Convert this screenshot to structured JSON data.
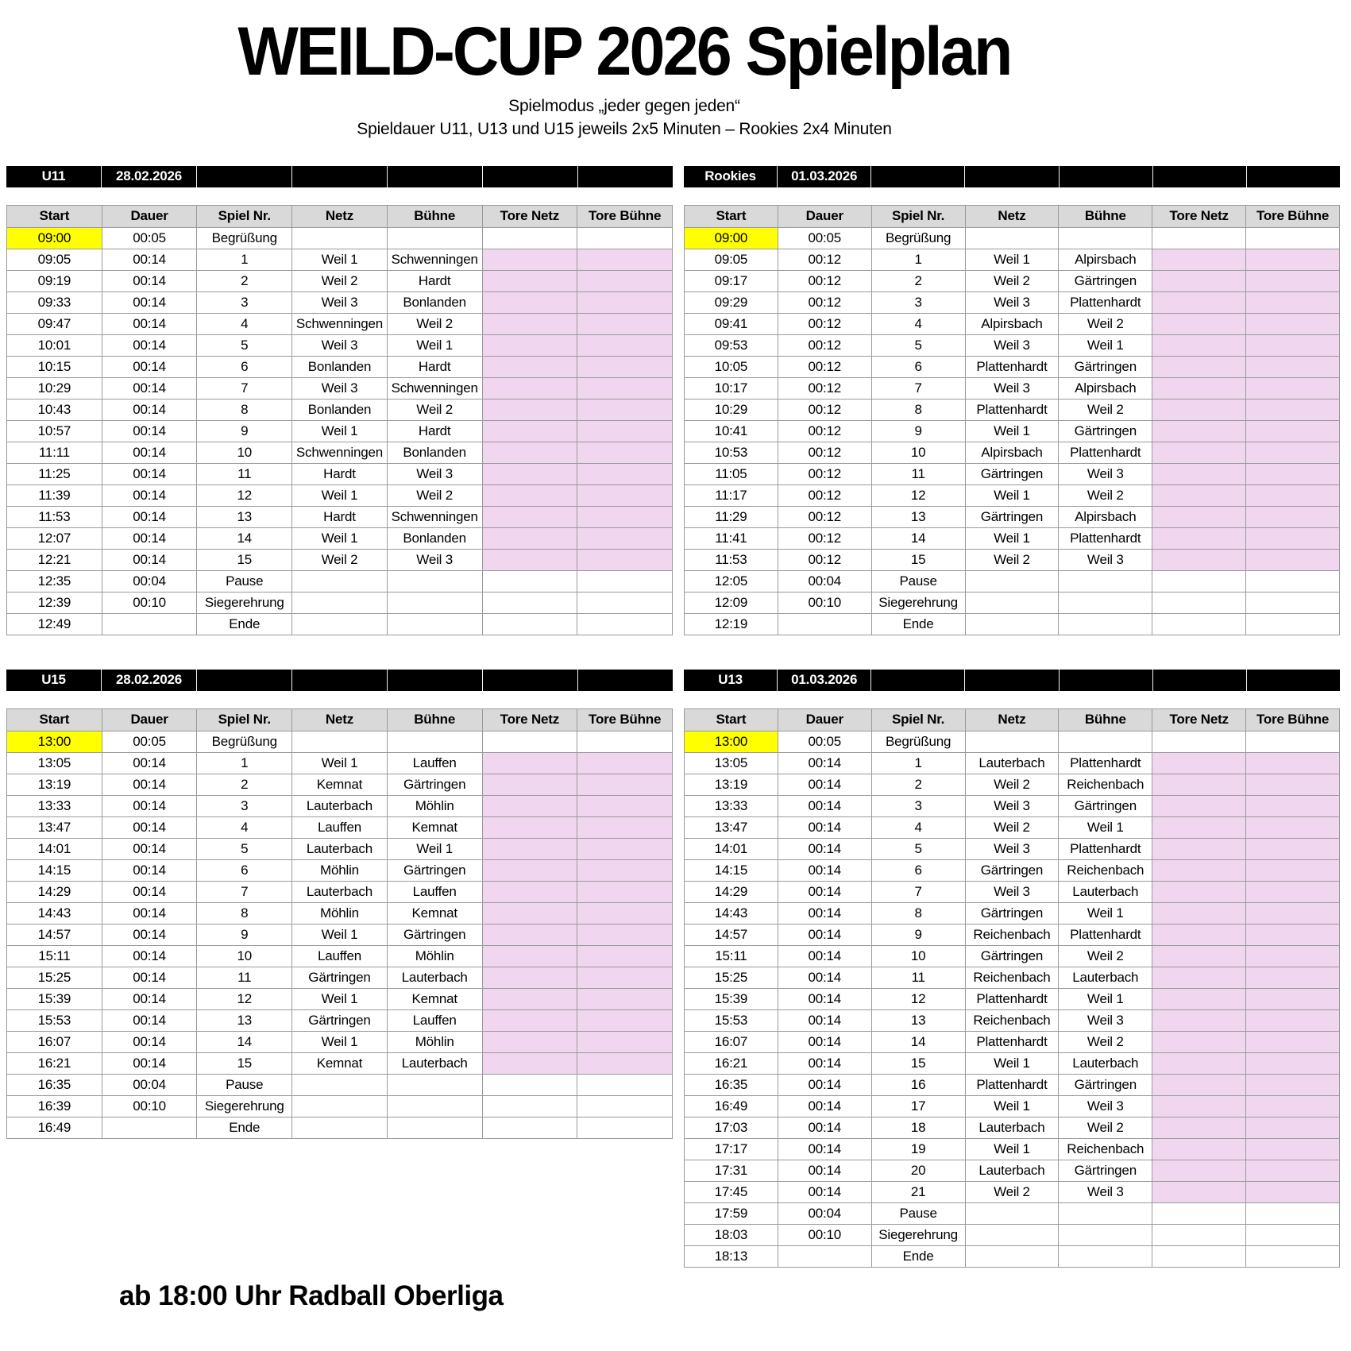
{
  "title": "WEILD-CUP 2026 Spielplan",
  "subtitle1": "Spielmodus „jeder gegen jeden“",
  "subtitle2": "Spieldauer U11, U13 und U15 jeweils 2x5 Minuten – Rookies 2x4 Minuten",
  "footer_note": "ab 18:00 Uhr Radball Oberliga",
  "columns": [
    "Start",
    "Dauer",
    "Spiel Nr.",
    "Netz",
    "Bühne",
    "Tore Netz",
    "Tore Bühne"
  ],
  "colors": {
    "band": "#000000",
    "header": "#d9d9d9",
    "highlight": "#ffff00",
    "score": "#f0d6ee"
  },
  "tables": [
    {
      "id": "u11",
      "group": "U11",
      "date": "28.02.2026",
      "rows": [
        {
          "t": "begin",
          "start": "09:00",
          "dauer": "00:05",
          "nr": "Begrüßung"
        },
        {
          "t": "game",
          "start": "09:05",
          "dauer": "00:14",
          "nr": "1",
          "netz": "Weil 1",
          "buehne": "Schwenningen"
        },
        {
          "t": "game",
          "start": "09:19",
          "dauer": "00:14",
          "nr": "2",
          "netz": "Weil 2",
          "buehne": "Hardt"
        },
        {
          "t": "game",
          "start": "09:33",
          "dauer": "00:14",
          "nr": "3",
          "netz": "Weil 3",
          "buehne": "Bonlanden"
        },
        {
          "t": "game",
          "start": "09:47",
          "dauer": "00:14",
          "nr": "4",
          "netz": "Schwenningen",
          "buehne": "Weil 2"
        },
        {
          "t": "game",
          "start": "10:01",
          "dauer": "00:14",
          "nr": "5",
          "netz": "Weil 3",
          "buehne": "Weil 1"
        },
        {
          "t": "game",
          "start": "10:15",
          "dauer": "00:14",
          "nr": "6",
          "netz": "Bonlanden",
          "buehne": "Hardt"
        },
        {
          "t": "game",
          "start": "10:29",
          "dauer": "00:14",
          "nr": "7",
          "netz": "Weil 3",
          "buehne": "Schwenningen"
        },
        {
          "t": "game",
          "start": "10:43",
          "dauer": "00:14",
          "nr": "8",
          "netz": "Bonlanden",
          "buehne": "Weil 2"
        },
        {
          "t": "game",
          "start": "10:57",
          "dauer": "00:14",
          "nr": "9",
          "netz": "Weil 1",
          "buehne": "Hardt"
        },
        {
          "t": "game",
          "start": "11:11",
          "dauer": "00:14",
          "nr": "10",
          "netz": "Schwenningen",
          "buehne": "Bonlanden"
        },
        {
          "t": "game",
          "start": "11:25",
          "dauer": "00:14",
          "nr": "11",
          "netz": "Hardt",
          "buehne": "Weil 3"
        },
        {
          "t": "game",
          "start": "11:39",
          "dauer": "00:14",
          "nr": "12",
          "netz": "Weil 1",
          "buehne": "Weil 2"
        },
        {
          "t": "game",
          "start": "11:53",
          "dauer": "00:14",
          "nr": "13",
          "netz": "Hardt",
          "buehne": "Schwenningen"
        },
        {
          "t": "game",
          "start": "12:07",
          "dauer": "00:14",
          "nr": "14",
          "netz": "Weil 1",
          "buehne": "Bonlanden"
        },
        {
          "t": "game",
          "start": "12:21",
          "dauer": "00:14",
          "nr": "15",
          "netz": "Weil 2",
          "buehne": "Weil 3"
        },
        {
          "t": "misc",
          "start": "12:35",
          "dauer": "00:04",
          "nr": "Pause"
        },
        {
          "t": "misc",
          "start": "12:39",
          "dauer": "00:10",
          "nr": "Siegerehrung"
        },
        {
          "t": "end",
          "start": "12:49",
          "dauer": "",
          "nr": "Ende"
        }
      ]
    },
    {
      "id": "rookies",
      "group": "Rookies",
      "date": "01.03.2026",
      "rows": [
        {
          "t": "begin",
          "start": "09:00",
          "dauer": "00:05",
          "nr": "Begrüßung"
        },
        {
          "t": "game",
          "start": "09:05",
          "dauer": "00:12",
          "nr": "1",
          "netz": "Weil 1",
          "buehne": "Alpirsbach"
        },
        {
          "t": "game",
          "start": "09:17",
          "dauer": "00:12",
          "nr": "2",
          "netz": "Weil 2",
          "buehne": "Gärtringen"
        },
        {
          "t": "game",
          "start": "09:29",
          "dauer": "00:12",
          "nr": "3",
          "netz": "Weil 3",
          "buehne": "Plattenhardt"
        },
        {
          "t": "game",
          "start": "09:41",
          "dauer": "00:12",
          "nr": "4",
          "netz": "Alpirsbach",
          "buehne": "Weil 2"
        },
        {
          "t": "game",
          "start": "09:53",
          "dauer": "00:12",
          "nr": "5",
          "netz": "Weil 3",
          "buehne": "Weil 1"
        },
        {
          "t": "game",
          "start": "10:05",
          "dauer": "00:12",
          "nr": "6",
          "netz": "Plattenhardt",
          "buehne": "Gärtringen"
        },
        {
          "t": "game",
          "start": "10:17",
          "dauer": "00:12",
          "nr": "7",
          "netz": "Weil 3",
          "buehne": "Alpirsbach"
        },
        {
          "t": "game",
          "start": "10:29",
          "dauer": "00:12",
          "nr": "8",
          "netz": "Plattenhardt",
          "buehne": "Weil 2"
        },
        {
          "t": "game",
          "start": "10:41",
          "dauer": "00:12",
          "nr": "9",
          "netz": "Weil 1",
          "buehne": "Gärtringen"
        },
        {
          "t": "game",
          "start": "10:53",
          "dauer": "00:12",
          "nr": "10",
          "netz": "Alpirsbach",
          "buehne": "Plattenhardt"
        },
        {
          "t": "game",
          "start": "11:05",
          "dauer": "00:12",
          "nr": "11",
          "netz": "Gärtringen",
          "buehne": "Weil 3"
        },
        {
          "t": "game",
          "start": "11:17",
          "dauer": "00:12",
          "nr": "12",
          "netz": "Weil 1",
          "buehne": "Weil 2"
        },
        {
          "t": "game",
          "start": "11:29",
          "dauer": "00:12",
          "nr": "13",
          "netz": "Gärtringen",
          "buehne": "Alpirsbach"
        },
        {
          "t": "game",
          "start": "11:41",
          "dauer": "00:12",
          "nr": "14",
          "netz": "Weil 1",
          "buehne": "Plattenhardt"
        },
        {
          "t": "game",
          "start": "11:53",
          "dauer": "00:12",
          "nr": "15",
          "netz": "Weil 2",
          "buehne": "Weil 3"
        },
        {
          "t": "misc",
          "start": "12:05",
          "dauer": "00:04",
          "nr": "Pause"
        },
        {
          "t": "misc",
          "start": "12:09",
          "dauer": "00:10",
          "nr": "Siegerehrung"
        },
        {
          "t": "end",
          "start": "12:19",
          "dauer": "",
          "nr": "Ende"
        }
      ]
    },
    {
      "id": "u15",
      "group": "U15",
      "date": "28.02.2026",
      "rows": [
        {
          "t": "begin",
          "start": "13:00",
          "dauer": "00:05",
          "nr": "Begrüßung"
        },
        {
          "t": "game",
          "start": "13:05",
          "dauer": "00:14",
          "nr": "1",
          "netz": "Weil 1",
          "buehne": "Lauffen"
        },
        {
          "t": "game",
          "start": "13:19",
          "dauer": "00:14",
          "nr": "2",
          "netz": "Kemnat",
          "buehne": "Gärtringen"
        },
        {
          "t": "game",
          "start": "13:33",
          "dauer": "00:14",
          "nr": "3",
          "netz": "Lauterbach",
          "buehne": "Möhlin"
        },
        {
          "t": "game",
          "start": "13:47",
          "dauer": "00:14",
          "nr": "4",
          "netz": "Lauffen",
          "buehne": "Kemnat"
        },
        {
          "t": "game",
          "start": "14:01",
          "dauer": "00:14",
          "nr": "5",
          "netz": "Lauterbach",
          "buehne": "Weil 1"
        },
        {
          "t": "game",
          "start": "14:15",
          "dauer": "00:14",
          "nr": "6",
          "netz": "Möhlin",
          "buehne": "Gärtringen"
        },
        {
          "t": "game",
          "start": "14:29",
          "dauer": "00:14",
          "nr": "7",
          "netz": "Lauterbach",
          "buehne": "Lauffen"
        },
        {
          "t": "game",
          "start": "14:43",
          "dauer": "00:14",
          "nr": "8",
          "netz": "Möhlin",
          "buehne": "Kemnat"
        },
        {
          "t": "game",
          "start": "14:57",
          "dauer": "00:14",
          "nr": "9",
          "netz": "Weil 1",
          "buehne": "Gärtringen"
        },
        {
          "t": "game",
          "start": "15:11",
          "dauer": "00:14",
          "nr": "10",
          "netz": "Lauffen",
          "buehne": "Möhlin"
        },
        {
          "t": "game",
          "start": "15:25",
          "dauer": "00:14",
          "nr": "11",
          "netz": "Gärtringen",
          "buehne": "Lauterbach"
        },
        {
          "t": "game",
          "start": "15:39",
          "dauer": "00:14",
          "nr": "12",
          "netz": "Weil 1",
          "buehne": "Kemnat"
        },
        {
          "t": "game",
          "start": "15:53",
          "dauer": "00:14",
          "nr": "13",
          "netz": "Gärtringen",
          "buehne": "Lauffen"
        },
        {
          "t": "game",
          "start": "16:07",
          "dauer": "00:14",
          "nr": "14",
          "netz": "Weil 1",
          "buehne": "Möhlin"
        },
        {
          "t": "game",
          "start": "16:21",
          "dauer": "00:14",
          "nr": "15",
          "netz": "Kemnat",
          "buehne": "Lauterbach"
        },
        {
          "t": "misc",
          "start": "16:35",
          "dauer": "00:04",
          "nr": "Pause"
        },
        {
          "t": "misc",
          "start": "16:39",
          "dauer": "00:10",
          "nr": "Siegerehrung"
        },
        {
          "t": "end",
          "start": "16:49",
          "dauer": "",
          "nr": "Ende"
        }
      ]
    },
    {
      "id": "u13",
      "group": "U13",
      "date": "01.03.2026",
      "rows": [
        {
          "t": "begin",
          "start": "13:00",
          "dauer": "00:05",
          "nr": "Begrüßung"
        },
        {
          "t": "game",
          "start": "13:05",
          "dauer": "00:14",
          "nr": "1",
          "netz": "Lauterbach",
          "buehne": "Plattenhardt"
        },
        {
          "t": "game",
          "start": "13:19",
          "dauer": "00:14",
          "nr": "2",
          "netz": "Weil 2",
          "buehne": "Reichenbach"
        },
        {
          "t": "game",
          "start": "13:33",
          "dauer": "00:14",
          "nr": "3",
          "netz": "Weil 3",
          "buehne": "Gärtringen"
        },
        {
          "t": "game",
          "start": "13:47",
          "dauer": "00:14",
          "nr": "4",
          "netz": "Weil 2",
          "buehne": "Weil 1"
        },
        {
          "t": "game",
          "start": "14:01",
          "dauer": "00:14",
          "nr": "5",
          "netz": "Weil 3",
          "buehne": "Plattenhardt"
        },
        {
          "t": "game",
          "start": "14:15",
          "dauer": "00:14",
          "nr": "6",
          "netz": "Gärtringen",
          "buehne": "Reichenbach"
        },
        {
          "t": "game",
          "start": "14:29",
          "dauer": "00:14",
          "nr": "7",
          "netz": "Weil 3",
          "buehne": "Lauterbach"
        },
        {
          "t": "game",
          "start": "14:43",
          "dauer": "00:14",
          "nr": "8",
          "netz": "Gärtringen",
          "buehne": "Weil 1"
        },
        {
          "t": "game",
          "start": "14:57",
          "dauer": "00:14",
          "nr": "9",
          "netz": "Reichenbach",
          "buehne": "Plattenhardt"
        },
        {
          "t": "game",
          "start": "15:11",
          "dauer": "00:14",
          "nr": "10",
          "netz": "Gärtringen",
          "buehne": "Weil 2"
        },
        {
          "t": "game",
          "start": "15:25",
          "dauer": "00:14",
          "nr": "11",
          "netz": "Reichenbach",
          "buehne": "Lauterbach"
        },
        {
          "t": "game",
          "start": "15:39",
          "dauer": "00:14",
          "nr": "12",
          "netz": "Plattenhardt",
          "buehne": "Weil 1"
        },
        {
          "t": "game",
          "start": "15:53",
          "dauer": "00:14",
          "nr": "13",
          "netz": "Reichenbach",
          "buehne": "Weil 3"
        },
        {
          "t": "game",
          "start": "16:07",
          "dauer": "00:14",
          "nr": "14",
          "netz": "Plattenhardt",
          "buehne": "Weil 2"
        },
        {
          "t": "game",
          "start": "16:21",
          "dauer": "00:14",
          "nr": "15",
          "netz": "Weil 1",
          "buehne": "Lauterbach"
        },
        {
          "t": "game",
          "start": "16:35",
          "dauer": "00:14",
          "nr": "16",
          "netz": "Plattenhardt",
          "buehne": "Gärtringen"
        },
        {
          "t": "game",
          "start": "16:49",
          "dauer": "00:14",
          "nr": "17",
          "netz": "Weil 1",
          "buehne": "Weil 3"
        },
        {
          "t": "game",
          "start": "17:03",
          "dauer": "00:14",
          "nr": "18",
          "netz": "Lauterbach",
          "buehne": "Weil 2"
        },
        {
          "t": "game",
          "start": "17:17",
          "dauer": "00:14",
          "nr": "19",
          "netz": "Weil 1",
          "buehne": "Reichenbach"
        },
        {
          "t": "game",
          "start": "17:31",
          "dauer": "00:14",
          "nr": "20",
          "netz": "Lauterbach",
          "buehne": "Gärtringen"
        },
        {
          "t": "game",
          "start": "17:45",
          "dauer": "00:14",
          "nr": "21",
          "netz": "Weil 2",
          "buehne": "Weil 3"
        },
        {
          "t": "misc",
          "start": "17:59",
          "dauer": "00:04",
          "nr": "Pause"
        },
        {
          "t": "misc",
          "start": "18:03",
          "dauer": "00:10",
          "nr": "Siegerehrung"
        },
        {
          "t": "end",
          "start": "18:13",
          "dauer": "",
          "nr": "Ende"
        }
      ]
    }
  ]
}
